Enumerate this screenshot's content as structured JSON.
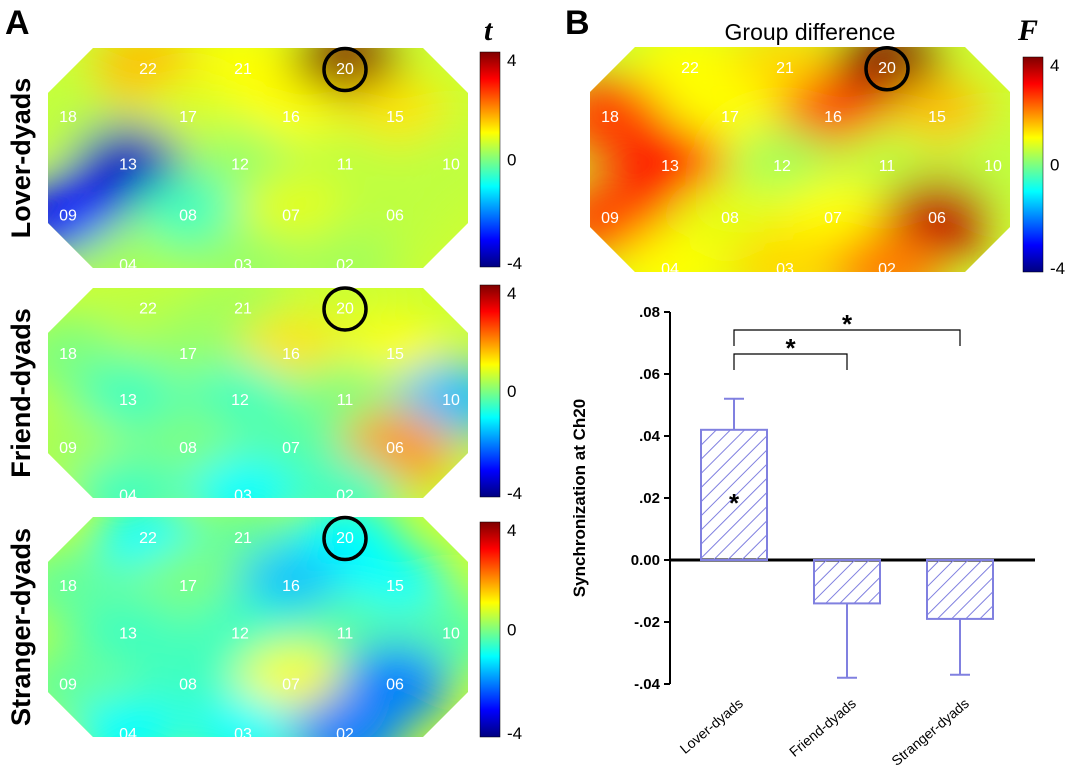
{
  "panels": {
    "a": "A",
    "b": "B"
  },
  "colormap": [
    "#00007f",
    "#0000ff",
    "#007fff",
    "#00ffff",
    "#7fff7f",
    "#ffff00",
    "#ff7f00",
    "#ff0000",
    "#7f0000"
  ],
  "topomaps": {
    "channels": [
      "22",
      "21",
      "20",
      "18",
      "17",
      "16",
      "15",
      "13",
      "12",
      "11",
      "10",
      "09",
      "08",
      "07",
      "06",
      "04",
      "03",
      "02"
    ],
    "highlight_channel": "20",
    "maps": [
      {
        "label": "Lover-dyads",
        "colorbar_title": "t",
        "range": [
          -4,
          4
        ],
        "ticks": [
          "4",
          "0",
          "-4"
        ],
        "values": {
          "22": 1.5,
          "21": 1.0,
          "20": 4.0,
          "18": 0.5,
          "17": 0.7,
          "16": 1.0,
          "15": 1.2,
          "13": -3.5,
          "12": 0.2,
          "11": 0.5,
          "10": 0.5,
          "09": -3.0,
          "08": -0.5,
          "07": 0.8,
          "06": 0.5,
          "04": 0.3,
          "03": 0.2,
          "02": 0.3
        }
      },
      {
        "label": "Friend-dyads",
        "colorbar_title": "",
        "range": [
          -4,
          4
        ],
        "ticks": [
          "4",
          "0",
          "-4"
        ],
        "values": {
          "22": 0.5,
          "21": 0.3,
          "20": 0.6,
          "18": 0.0,
          "17": 0.2,
          "16": 1.2,
          "15": 1.0,
          "13": -0.5,
          "12": -0.5,
          "11": 0.0,
          "10": -1.5,
          "09": 0.3,
          "08": 0.0,
          "07": -0.3,
          "06": 1.8,
          "04": -0.5,
          "03": -1.0,
          "02": -0.5
        }
      },
      {
        "label": "Stranger-dyads",
        "colorbar_title": "",
        "range": [
          -4,
          4
        ],
        "ticks": [
          "4",
          "0",
          "-4"
        ],
        "values": {
          "22": -1.0,
          "21": -0.2,
          "20": -1.0,
          "18": -0.2,
          "17": 0.0,
          "16": -1.5,
          "15": -1.0,
          "13": -0.5,
          "12": -0.5,
          "11": -0.3,
          "10": -0.3,
          "09": -0.2,
          "08": -0.5,
          "07": 1.0,
          "06": -2.0,
          "04": -1.0,
          "03": -1.0,
          "02": -2.0
        }
      },
      {
        "label": "",
        "title": "Group difference",
        "colorbar_title": "F",
        "range": [
          -4,
          4
        ],
        "ticks": [
          "4",
          "0",
          "-4"
        ],
        "values": {
          "22": 1.0,
          "21": 1.3,
          "20": 4.0,
          "18": 2.5,
          "17": 1.0,
          "16": 2.5,
          "15": 1.5,
          "13": 3.0,
          "12": 0.3,
          "11": 0.5,
          "10": 0.5,
          "09": 2.5,
          "08": 0.8,
          "07": 1.0,
          "06": 3.5,
          "04": 1.0,
          "03": 1.3,
          "02": 2.0
        }
      }
    ]
  },
  "chart_data": {
    "type": "bar",
    "categories": [
      "Lover-dyads",
      "Friend-dyads",
      "Stranger-dyads"
    ],
    "values": [
      0.042,
      -0.014,
      -0.019
    ],
    "error_bars": [
      0.01,
      0.024,
      0.018
    ],
    "ylabel": "Synchronization at Ch20",
    "ylim": [
      -0.04,
      0.08
    ],
    "yticks": [
      ".08",
      ".06",
      ".04",
      ".02",
      "0.00",
      "-.02",
      "-.04"
    ],
    "bar_fill": "hatched",
    "bar_color": "#8080e0",
    "significance": [
      {
        "between": [
          "Lover-dyads",
          "Stranger-dyads"
        ],
        "marker": "*"
      },
      {
        "between": [
          "Lover-dyads",
          "Friend-dyads"
        ],
        "marker": "*"
      },
      {
        "on": "Lover-dyads",
        "marker": "*"
      }
    ]
  }
}
